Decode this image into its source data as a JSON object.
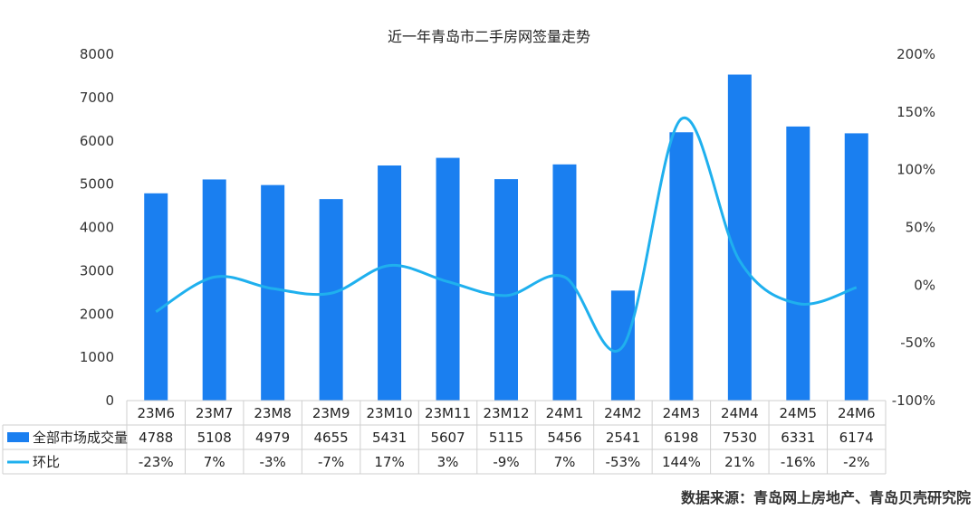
{
  "chart_data": {
    "type": "bar",
    "title": "近一年青岛市二手房网签量走势",
    "categories": [
      "23M6",
      "23M7",
      "23M8",
      "23M9",
      "23M10",
      "23M11",
      "23M12",
      "24M1",
      "24M2",
      "24M3",
      "24M4",
      "24M5",
      "24M6"
    ],
    "series": [
      {
        "name": "全部市场成交量",
        "type": "bar",
        "axis": "left",
        "color": "#1a7ff0",
        "values": [
          4788,
          5108,
          4979,
          4655,
          5431,
          5607,
          5115,
          5456,
          2541,
          6198,
          7530,
          6331,
          6174
        ]
      },
      {
        "name": "环比",
        "type": "line",
        "axis": "right",
        "color": "#1fb0ee",
        "values": [
          -23,
          7,
          -3,
          -7,
          17,
          3,
          -9,
          7,
          -53,
          144,
          21,
          -16,
          -2
        ],
        "labels": [
          "-23%",
          "7%",
          "-3%",
          "-7%",
          "17%",
          "3%",
          "-9%",
          "7%",
          "-53%",
          "144%",
          "21%",
          "-16%",
          "-2%"
        ]
      }
    ],
    "left_axis": {
      "ylim": [
        0,
        8000
      ],
      "ticks": [
        "0",
        "1000",
        "2000",
        "3000",
        "4000",
        "5000",
        "6000",
        "7000",
        "8000"
      ]
    },
    "right_axis": {
      "ylim": [
        -100,
        200
      ],
      "ticks": [
        "-100%",
        "-50%",
        "0%",
        "50%",
        "100%",
        "150%",
        "200%"
      ]
    },
    "data_table": true,
    "grid": false
  },
  "source_note": "数据来源：青岛网上房地产、青岛贝壳研究院"
}
